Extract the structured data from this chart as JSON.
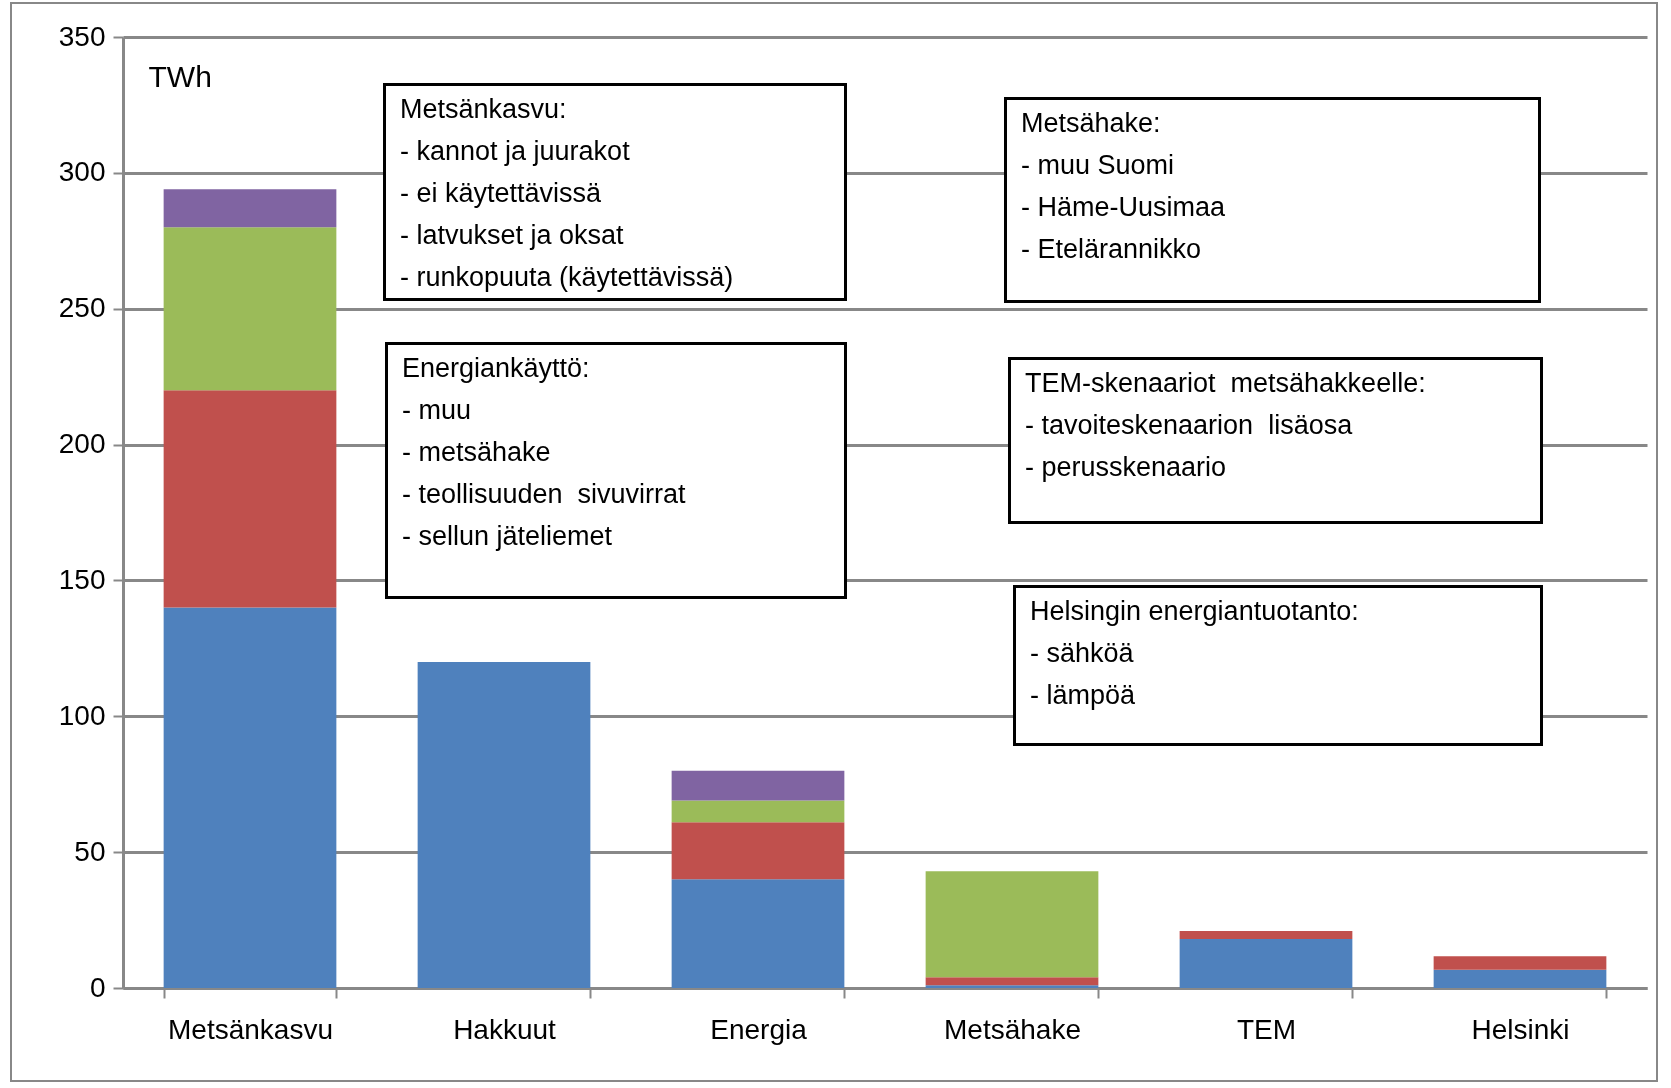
{
  "chart_data": {
    "type": "bar",
    "stacked": true,
    "ylabel": "TWh",
    "categories": [
      "Metsänkasvu",
      "Hakkuut",
      "Energia",
      "Metsähake",
      "TEM",
      "Helsinki"
    ],
    "series": [
      {
        "color": "#4f81bd",
        "values": [
          140,
          120,
          40,
          1,
          18,
          6.7
        ]
      },
      {
        "color": "#c0504d",
        "values": [
          80,
          null,
          21,
          3,
          3,
          5
        ]
      },
      {
        "color": "#9bbb59",
        "values": [
          60,
          null,
          8,
          39,
          null,
          null
        ]
      },
      {
        "color": "#8064a2",
        "values": [
          14,
          null,
          11,
          null,
          null,
          null
        ]
      }
    ],
    "ylim": [
      0,
      350
    ],
    "yticks": [
      0,
      50,
      100,
      150,
      200,
      250,
      300,
      350
    ],
    "grid": "y",
    "annotations": [
      "Metsänkasvu:\n- kannot ja juurakot\n- ei käytettävissä\n- latvukset ja oksat\n- runkopuuta (käytettävissä)",
      "Energiankäyttö:\n- muu\n- metsähake\n- teollisuuden  sivuvirrat\n- sellun jäteliemet",
      "Metsähake:\n- muu Suomi\n- Häme-Uusimaa\n- Etelärannikko",
      "TEM-skenaariot  metsähakkeelle:\n- tavoiteskenaarion  lisäosa\n- perusskenaario",
      "Helsingin energiantuotanto:\n- sähköä\n- lämpöä"
    ]
  }
}
